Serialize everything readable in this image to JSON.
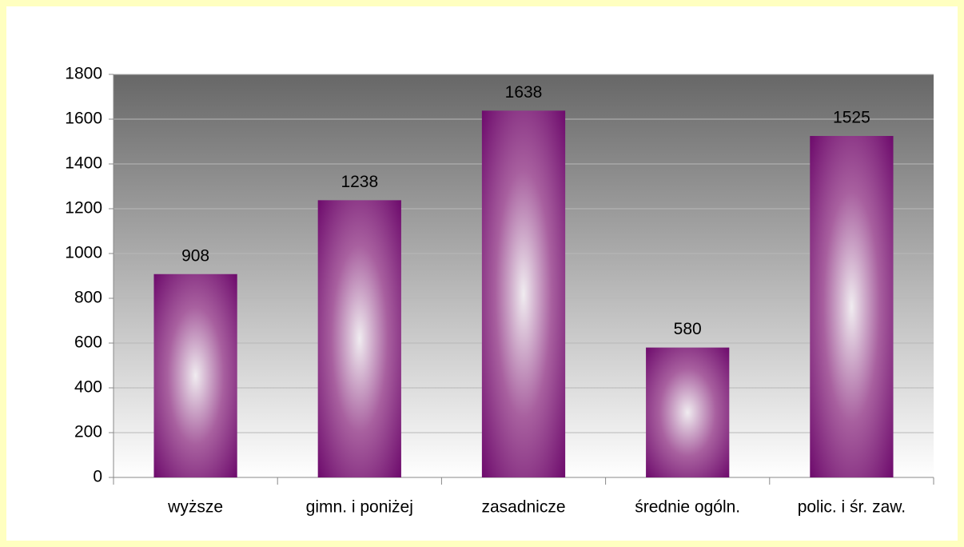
{
  "chart_data": {
    "type": "bar",
    "categories": [
      "wyższe",
      "gimn. i poniżej",
      "zasadnicze",
      "średnie ogóln.",
      "polic. i śr. zaw."
    ],
    "values": [
      908,
      1238,
      1638,
      580,
      1525
    ],
    "color": "#660066",
    "ylim": [
      0,
      1800
    ],
    "yticks": [
      0,
      200,
      400,
      600,
      800,
      1000,
      1200,
      1400,
      1600,
      1800
    ],
    "grid": true
  }
}
